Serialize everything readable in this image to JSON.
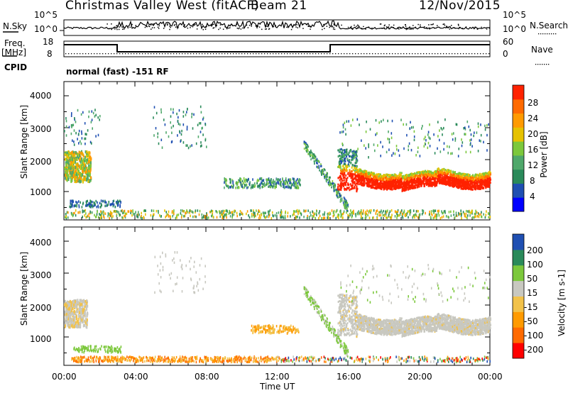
{
  "header": {
    "title": "Christmas Valley West (fitACF)",
    "beam": "Beam 21",
    "date": "12/Nov/2015"
  },
  "left_labels": {
    "nsky": "N.Sky",
    "freq": "Freq.",
    "freq_unit": "[MHz]",
    "cpid": "CPID"
  },
  "right_labels": {
    "nsearch": "N.Search",
    "nave": "Nave"
  },
  "cpid_text": "normal (fast) -151 RF",
  "colors": {
    "power": [
      "#0000ff",
      "#1f4fb2",
      "#2a8a5a",
      "#4fa86b",
      "#7cc83c",
      "#e6c200",
      "#ff9a00",
      "#ff6a00",
      "#ff2200"
    ],
    "velocity": [
      "#ff0000",
      "#ff6a00",
      "#ff9a00",
      "#f2c24a",
      "#c8c8c0",
      "#7cc83c",
      "#2a8a5a",
      "#1f4fb2"
    ]
  },
  "chart_data": [
    {
      "type": "line",
      "panel": "noise",
      "left_axis": {
        "label": "N.Sky",
        "ticks": [
          "10^5",
          "10^0"
        ]
      },
      "right_axis": {
        "label": "N.Search",
        "ticks": [
          "10^5",
          "10^0"
        ]
      }
    },
    {
      "type": "line",
      "panel": "frequency",
      "left_axis": {
        "label": "Freq. [MHz]",
        "ticks": [
          "18",
          "8"
        ]
      },
      "right_axis": {
        "label": "Nave",
        "ticks": [
          "60",
          "0"
        ]
      },
      "series": [
        {
          "x": [
            "00:00",
            "03:00",
            "03:00",
            "15:00",
            "15:00",
            "24:00"
          ],
          "values": [
            15.2,
            15.2,
            10.2,
            10.2,
            15.2,
            15.2
          ]
        }
      ]
    },
    {
      "type": "heatmap",
      "panel": "power",
      "ylabel": "Slant Range [km]",
      "yticks": [
        "4000",
        "3000",
        "2000",
        "1000"
      ],
      "colorbar": {
        "label": "Power [dB]",
        "ticks": [
          "28",
          "24",
          "20",
          "16",
          "12",
          "8",
          "4"
        ]
      }
    },
    {
      "type": "heatmap",
      "panel": "velocity",
      "ylabel": "Slant Range [km]",
      "yticks": [
        "4000",
        "3000",
        "2000",
        "1000"
      ],
      "xlabel": "Time UT",
      "xticks": [
        "00:00",
        "04:00",
        "08:00",
        "12:00",
        "16:00",
        "20:00",
        "00:00"
      ],
      "colorbar": {
        "label": "Velocity [m s-1]",
        "ticks": [
          "200",
          "100",
          "50",
          "15",
          "-15",
          "-50",
          "-100",
          "-200"
        ]
      }
    }
  ]
}
